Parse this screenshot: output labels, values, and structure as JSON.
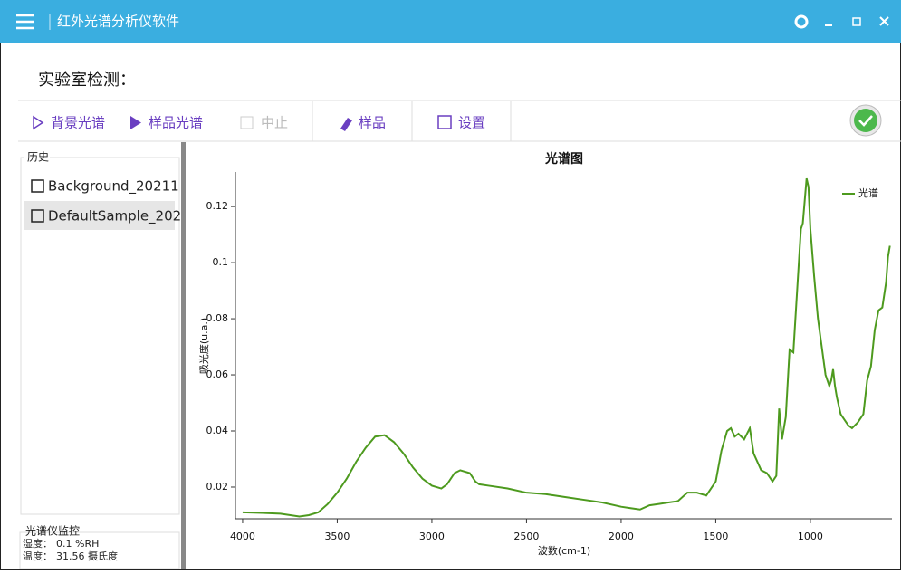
{
  "app": {
    "title": "红外光谱分析仪软件"
  },
  "header": {
    "title": "实验室检测："
  },
  "toolbar": {
    "buttons": [
      "背景光谱",
      "样品光谱",
      "中止",
      "样品",
      "设置"
    ]
  },
  "history": {
    "title": "历史",
    "items": [
      "Background_20211",
      "DefaultSample_202"
    ]
  },
  "monitor": {
    "title": "光谱仪监控",
    "rows": [
      [
        "湿度：",
        "0.1 %RH"
      ],
      [
        "温度：",
        "31.56 摄氏度"
      ]
    ]
  },
  "chart_data": {
    "type": "line",
    "title": "光谱图",
    "x_label": "波数(cm-1)",
    "y_label": "吸光度(u.a.)",
    "xlim": [
      4038,
      569
    ],
    "ylim": [
      0.0087,
      0.1323
    ],
    "xticks": [
      4000,
      3500,
      3000,
      2500,
      2000,
      1500,
      1000
    ],
    "yticks": [
      0.02,
      0.04,
      0.06,
      0.08,
      0.1,
      0.12
    ],
    "legend": "top-right",
    "x": [
      4000,
      3900,
      3800,
      3700,
      3650,
      3600,
      3550,
      3500,
      3450,
      3400,
      3350,
      3300,
      3250,
      3200,
      3150,
      3100,
      3050,
      3000,
      2950,
      2920,
      2880,
      2850,
      2800,
      2770,
      2750,
      2700,
      2600,
      2500,
      2400,
      2300,
      2200,
      2100,
      2000,
      1950,
      1900,
      1850,
      1800,
      1750,
      1700,
      1650,
      1600,
      1550,
      1500,
      1470,
      1440,
      1420,
      1400,
      1380,
      1350,
      1320,
      1300,
      1260,
      1230,
      1200,
      1180,
      1165,
      1150,
      1130,
      1110,
      1090,
      1070,
      1050,
      1040,
      1030,
      1020,
      1010,
      1000,
      980,
      960,
      940,
      920,
      900,
      890,
      880,
      870,
      860,
      840,
      800,
      780,
      750,
      720,
      700,
      680,
      660,
      640,
      620,
      600,
      590,
      580
    ],
    "series": [
      {
        "name": "光谱",
        "color": "#4d9a1e",
        "values": [
          0.011,
          0.0108,
          0.0105,
          0.0095,
          0.01,
          0.011,
          0.014,
          0.018,
          0.023,
          0.029,
          0.034,
          0.038,
          0.0385,
          0.036,
          0.032,
          0.027,
          0.023,
          0.0205,
          0.0195,
          0.021,
          0.025,
          0.026,
          0.025,
          0.022,
          0.021,
          0.0205,
          0.0195,
          0.018,
          0.0175,
          0.0165,
          0.0155,
          0.0145,
          0.013,
          0.0125,
          0.012,
          0.0135,
          0.014,
          0.0145,
          0.015,
          0.018,
          0.018,
          0.017,
          0.022,
          0.033,
          0.04,
          0.041,
          0.038,
          0.039,
          0.037,
          0.041,
          0.032,
          0.026,
          0.025,
          0.022,
          0.024,
          0.048,
          0.037,
          0.045,
          0.069,
          0.068,
          0.09,
          0.112,
          0.114,
          0.122,
          0.13,
          0.127,
          0.112,
          0.095,
          0.08,
          0.07,
          0.06,
          0.056,
          0.058,
          0.062,
          0.056,
          0.052,
          0.046,
          0.042,
          0.041,
          0.043,
          0.046,
          0.058,
          0.063,
          0.076,
          0.083,
          0.084,
          0.093,
          0.102,
          0.106
        ]
      }
    ]
  }
}
